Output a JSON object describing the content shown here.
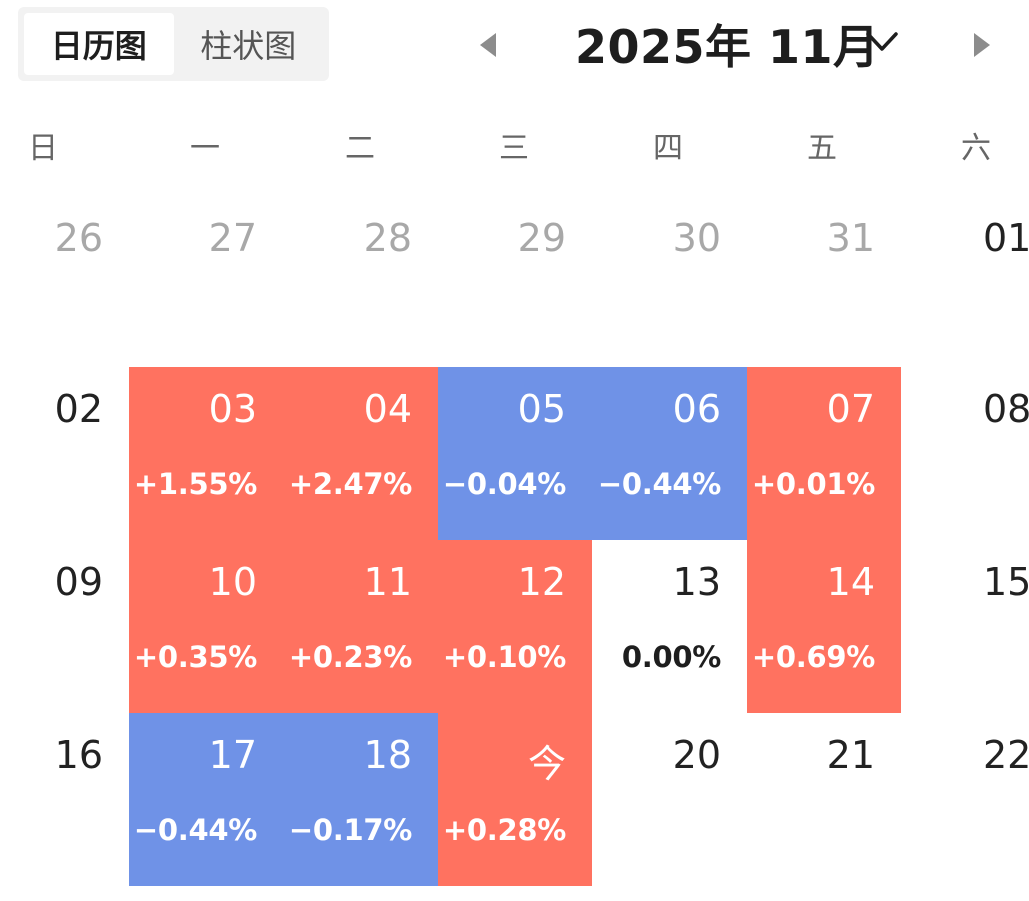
{
  "tabs": [
    {
      "label": "日历图",
      "active": true
    },
    {
      "label": "柱状图",
      "active": false
    }
  ],
  "header": {
    "month_title": "2025年 11月"
  },
  "weekdays": [
    "日",
    "一",
    "二",
    "三",
    "四",
    "五",
    "六"
  ],
  "colors": {
    "up": "#FF7260",
    "down": "#6F92E7",
    "muted_text": "#A8A8A8"
  },
  "calendar": {
    "rows": [
      [
        {
          "day": "26",
          "state": "outside"
        },
        {
          "day": "27",
          "state": "outside"
        },
        {
          "day": "28",
          "state": "outside"
        },
        {
          "day": "29",
          "state": "outside"
        },
        {
          "day": "30",
          "state": "outside"
        },
        {
          "day": "31",
          "state": "outside"
        },
        {
          "day": "01",
          "state": "weekend"
        }
      ],
      [
        {
          "day": "02",
          "state": "weekend"
        },
        {
          "day": "03",
          "state": "up",
          "change": "+1.55%"
        },
        {
          "day": "04",
          "state": "up",
          "change": "+2.47%"
        },
        {
          "day": "05",
          "state": "down",
          "change": "−0.04%"
        },
        {
          "day": "06",
          "state": "down",
          "change": "−0.44%"
        },
        {
          "day": "07",
          "state": "up",
          "change": "+0.01%"
        },
        {
          "day": "08",
          "state": "weekend"
        }
      ],
      [
        {
          "day": "09",
          "state": "weekend"
        },
        {
          "day": "10",
          "state": "up",
          "change": "+0.35%"
        },
        {
          "day": "11",
          "state": "up",
          "change": "+0.23%"
        },
        {
          "day": "12",
          "state": "up",
          "change": "+0.10%"
        },
        {
          "day": "13",
          "state": "flat",
          "change": "0.00%"
        },
        {
          "day": "14",
          "state": "up",
          "change": "+0.69%"
        },
        {
          "day": "15",
          "state": "weekend"
        }
      ],
      [
        {
          "day": "16",
          "state": "weekend"
        },
        {
          "day": "17",
          "state": "down",
          "change": "−0.44%"
        },
        {
          "day": "18",
          "state": "down",
          "change": "−0.17%"
        },
        {
          "day": "今",
          "state": "up",
          "change": "+0.28%"
        },
        {
          "day": "20",
          "state": "future"
        },
        {
          "day": "21",
          "state": "future"
        },
        {
          "day": "22",
          "state": "weekend"
        }
      ]
    ]
  }
}
